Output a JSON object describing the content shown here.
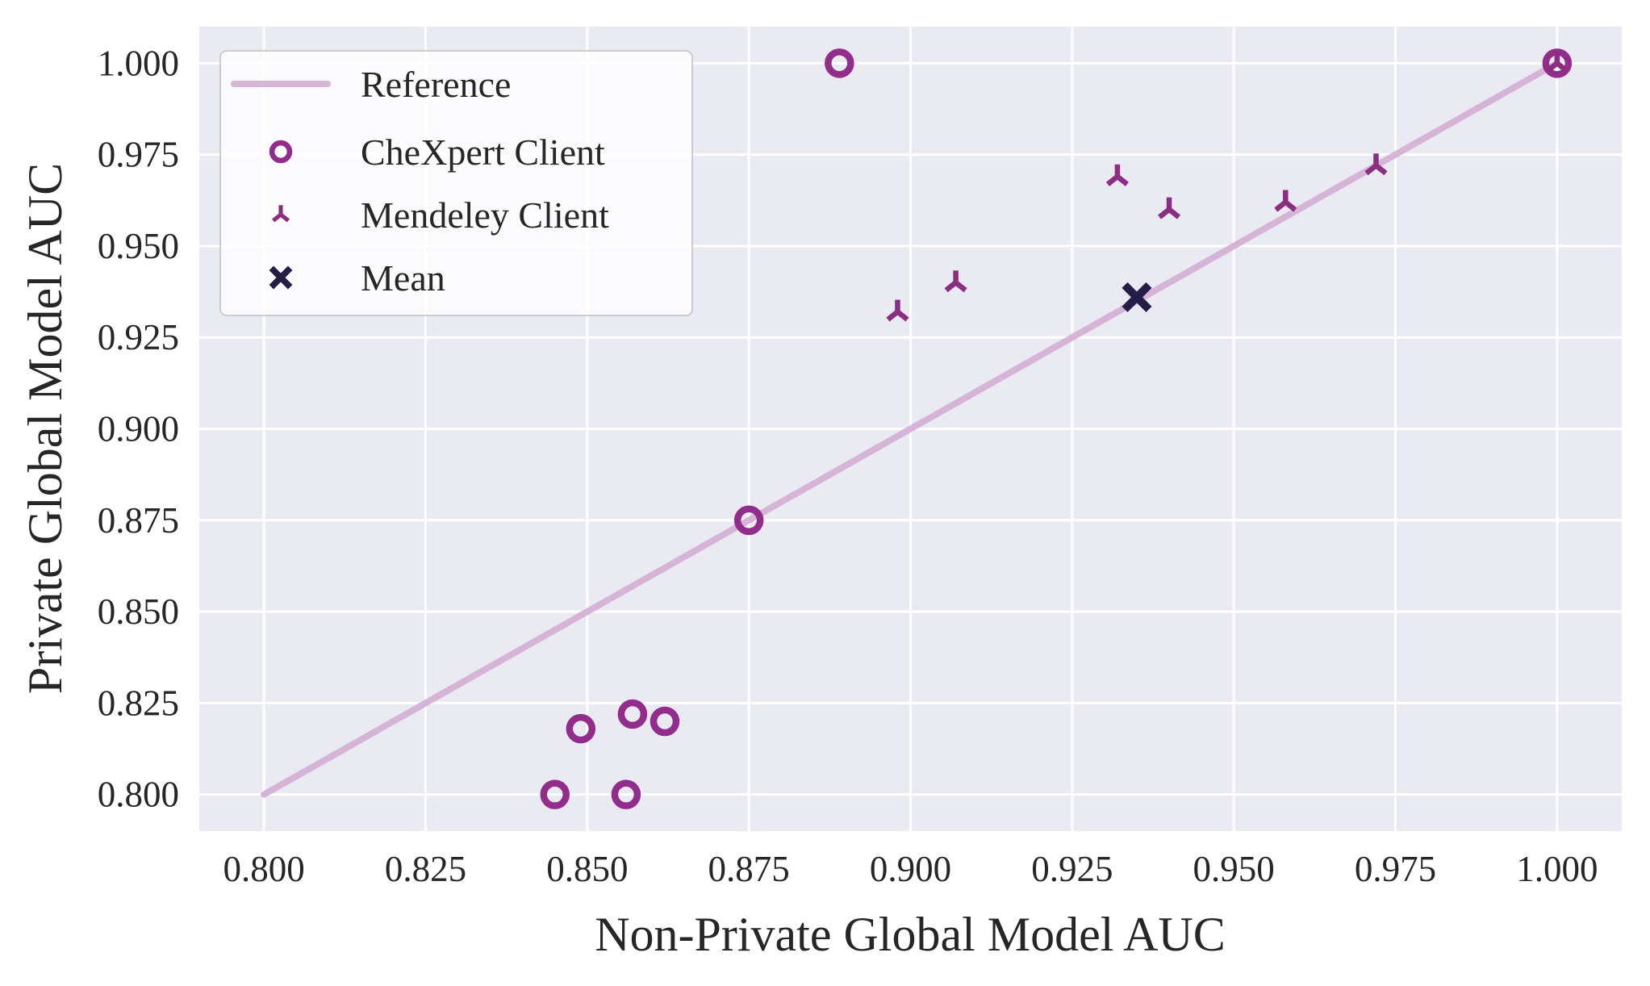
{
  "figure": {
    "page_background": "#ffffff",
    "plot_background": "#eaeaf2",
    "grid_color": "#ffffff",
    "text_color": "#262626",
    "legend_background": "rgba(255,255,255,0.8)",
    "legend_border": "#cccccc"
  },
  "chart_data": {
    "type": "scatter",
    "title": "",
    "xlabel": "Non-Private Global Model AUC",
    "ylabel": "Private Global Model AUC",
    "xlim": [
      0.79,
      1.01
    ],
    "ylim": [
      0.79,
      1.01
    ],
    "grid": true,
    "xtick_values": [
      0.8,
      0.825,
      0.85,
      0.875,
      0.9,
      0.925,
      0.95,
      0.975,
      1.0
    ],
    "xtick_labels": [
      "0.800",
      "0.825",
      "0.850",
      "0.875",
      "0.900",
      "0.925",
      "0.950",
      "0.975",
      "1.000"
    ],
    "ytick_values": [
      0.8,
      0.825,
      0.85,
      0.875,
      0.9,
      0.925,
      0.95,
      0.975,
      1.0
    ],
    "ytick_labels": [
      "0.800",
      "0.825",
      "0.850",
      "0.875",
      "0.900",
      "0.925",
      "0.950",
      "0.975",
      "1.000"
    ],
    "legend": {
      "position": "upper-left",
      "entries": [
        {
          "label": "Reference",
          "marker": "line",
          "icon_name": "reference-line-sample"
        },
        {
          "label": "CheXpert Client",
          "marker": "circle",
          "icon_name": "circle-marker-icon"
        },
        {
          "label": "Mendeley Client",
          "marker": "tri-up",
          "icon_name": "tri-up-marker-icon"
        },
        {
          "label": "Mean",
          "marker": "x",
          "icon_name": "x-marker-icon"
        }
      ]
    },
    "series": [
      {
        "name": "Reference",
        "kind": "line",
        "marker": "none",
        "color": "#d5b4d6",
        "points": [
          [
            0.8,
            0.8
          ],
          [
            1.0,
            1.0
          ]
        ]
      },
      {
        "name": "CheXpert Client",
        "kind": "scatter",
        "marker": "circle",
        "color": "#922d8c",
        "points": [
          [
            0.845,
            0.8
          ],
          [
            0.849,
            0.818
          ],
          [
            0.856,
            0.8
          ],
          [
            0.857,
            0.822
          ],
          [
            0.862,
            0.82
          ],
          [
            0.875,
            0.875
          ],
          [
            0.889,
            1.0
          ],
          [
            1.0,
            1.0
          ]
        ]
      },
      {
        "name": "Mendeley Client",
        "kind": "scatter",
        "marker": "tri-up",
        "color": "#8b2e82",
        "points": [
          [
            0.898,
            0.932
          ],
          [
            0.907,
            0.94
          ],
          [
            0.932,
            0.969
          ],
          [
            0.94,
            0.96
          ],
          [
            0.958,
            0.962
          ],
          [
            0.972,
            0.972
          ],
          [
            1.0,
            1.0
          ]
        ]
      },
      {
        "name": "Mean",
        "kind": "scatter",
        "marker": "x",
        "color": "#251d46",
        "points": [
          [
            0.935,
            0.936
          ]
        ]
      }
    ]
  }
}
